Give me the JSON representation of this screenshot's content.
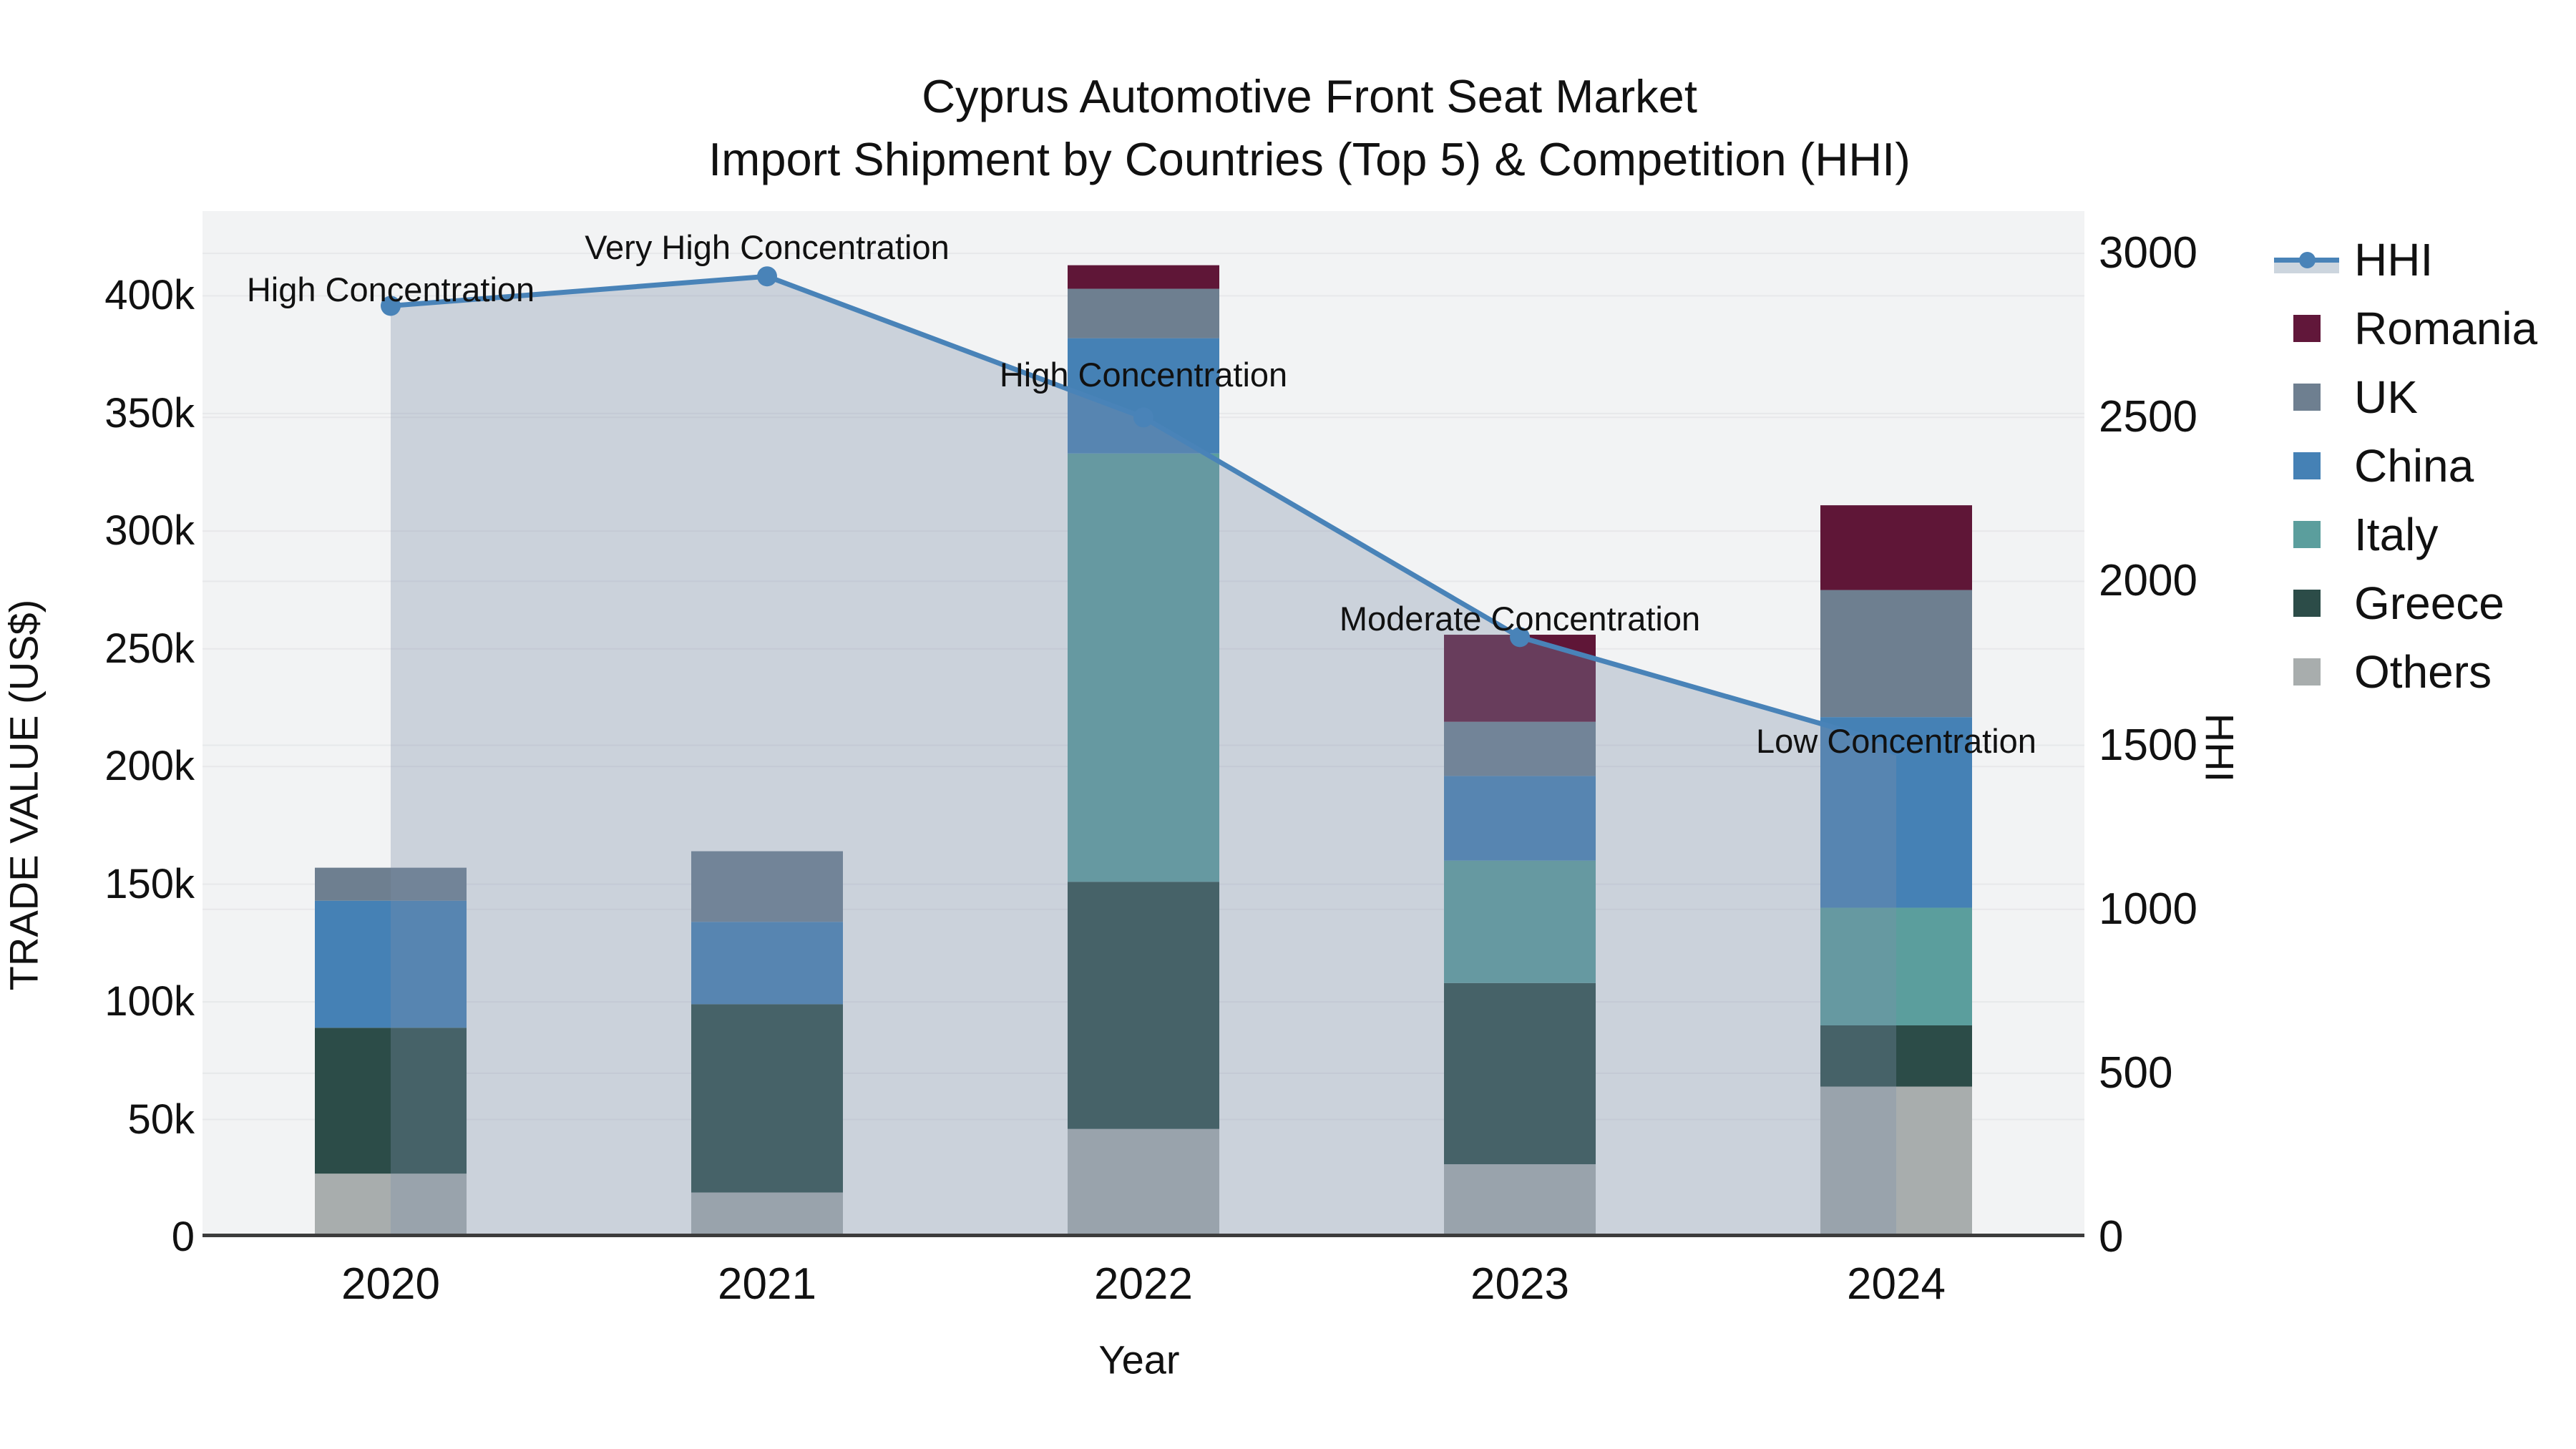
{
  "title": {
    "line1": "Cyprus Automotive Front Seat Market",
    "line2": "Import Shipment by Countries (Top 5) & Competition (HHI)"
  },
  "axes": {
    "x": {
      "title": "Year",
      "categories": [
        "2020",
        "2021",
        "2022",
        "2023",
        "2024"
      ]
    },
    "y_left": {
      "title": "TRADE VALUE (US$)",
      "ticks": [
        {
          "label": "0",
          "value": 0
        },
        {
          "label": "50k",
          "value": 50
        },
        {
          "label": "100k",
          "value": 100
        },
        {
          "label": "150k",
          "value": 150
        },
        {
          "label": "200k",
          "value": 200
        },
        {
          "label": "250k",
          "value": 250
        },
        {
          "label": "300k",
          "value": 300
        },
        {
          "label": "350k",
          "value": 350
        },
        {
          "label": "400k",
          "value": 400
        }
      ]
    },
    "y_right": {
      "title": "HHI",
      "ticks": [
        {
          "label": "0",
          "value": 0
        },
        {
          "label": "500",
          "value": 500
        },
        {
          "label": "1000",
          "value": 1000
        },
        {
          "label": "1500",
          "value": 1500
        },
        {
          "label": "2000",
          "value": 2000
        },
        {
          "label": "2500",
          "value": 2500
        },
        {
          "label": "3000",
          "value": 3000
        }
      ]
    }
  },
  "chart_data": {
    "type": [
      "bar",
      "line",
      "area"
    ],
    "title": "Cyprus Automotive Front Seat Market — Import Shipment by Countries (Top 5) & Competition (HHI)",
    "categories": [
      "2020",
      "2021",
      "2022",
      "2023",
      "2024"
    ],
    "bar_unit": "US$ thousands (trade value)",
    "stack_order_bottom_to_top": [
      "Others",
      "Greece",
      "Italy",
      "China",
      "UK",
      "Romania"
    ],
    "series": [
      {
        "name": "Others",
        "values": [
          27,
          19,
          46,
          31,
          64
        ]
      },
      {
        "name": "Greece",
        "values": [
          62,
          80,
          105,
          77,
          26
        ]
      },
      {
        "name": "Italy",
        "values": [
          0,
          0,
          182,
          52,
          50
        ]
      },
      {
        "name": "China",
        "values": [
          54,
          35,
          49,
          36,
          81
        ]
      },
      {
        "name": "UK",
        "values": [
          14,
          30,
          21,
          23,
          54
        ]
      },
      {
        "name": "Romania",
        "values": [
          0,
          0,
          10,
          37,
          36
        ]
      }
    ],
    "bar_totals": [
      157,
      164,
      413,
      256,
      311
    ],
    "line": {
      "name": "HHI",
      "axis": "right",
      "values": [
        2840,
        2930,
        2500,
        1830,
        1500
      ],
      "area_fill": true
    },
    "ylim_left": [
      0,
      436
    ],
    "ylim_right": [
      0,
      3129
    ],
    "grid": true,
    "legend_position": "right"
  },
  "annotations": [
    {
      "year_index": 0,
      "text": "High Concentration",
      "y_hhi": 2890
    },
    {
      "year_index": 1,
      "text": "Very High Concentration",
      "y_hhi": 3017
    },
    {
      "year_index": 2,
      "text": "High Concentration",
      "y_hhi": 2630
    },
    {
      "year_index": 3,
      "text": "Moderate Concentration",
      "y_hhi": 1885
    },
    {
      "year_index": 4,
      "text": "Low Concentration",
      "y_hhi": 1512
    }
  ],
  "legend": {
    "items": [
      {
        "label": "HHI",
        "type": "line",
        "color": "#4983b8"
      },
      {
        "label": "Romania",
        "type": "square",
        "color": "#61173a"
      },
      {
        "label": "UK",
        "type": "square",
        "color": "#6e7f90"
      },
      {
        "label": "China",
        "type": "square",
        "color": "#4581b5"
      },
      {
        "label": "Italy",
        "type": "square",
        "color": "#5b9e9d"
      },
      {
        "label": "Greece",
        "type": "square",
        "color": "#2c4c48"
      },
      {
        "label": "Others",
        "type": "square",
        "color": "#a8adad"
      }
    ]
  },
  "colors": {
    "hhi_line": "#4983b8",
    "hhi_area": "rgba(124,144,170,0.33)",
    "Romania": "#5f1637",
    "UK": "#6e7f90",
    "China": "#4581b5",
    "Italy": "#5b9e9d",
    "Greece": "#2c4c48",
    "Others": "#a8adad",
    "plot_bg": "#f2f3f4",
    "grid": "#e7e8ea",
    "axis_line": "#3c3c3c",
    "hhi_area_legend_band": "#ccd5de"
  }
}
